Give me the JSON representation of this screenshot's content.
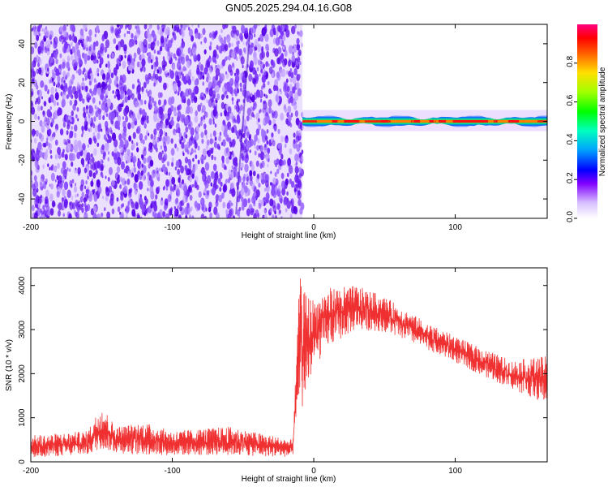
{
  "figure": {
    "title": "GN05.2025.294.04.16.G08"
  },
  "chart_data": [
    {
      "type": "heatmap",
      "xlabel": "Height of straight line (km)",
      "ylabel": "Frequency (Hz)",
      "xlim": [
        -200,
        165
      ],
      "ylim": [
        -50,
        50
      ],
      "x_ticks": [
        -200,
        -100,
        0,
        100
      ],
      "y_ticks": [
        -40,
        -20,
        0,
        20,
        40
      ],
      "noise_region_x": [
        -200,
        -8
      ],
      "signal_region_x": [
        -8,
        165
      ],
      "signal_center_hz": 0,
      "colorbar": {
        "label": "Normalized spectral amplitude",
        "range": [
          0.0,
          1.0
        ],
        "ticks": [
          0.0,
          0.2,
          0.4,
          0.6,
          0.8
        ],
        "tick_labels": [
          "0.0",
          "0.2",
          "0.4",
          "0.6",
          "0.8"
        ],
        "colors": [
          "#f0e0ff",
          "#8040ff",
          "#0000ff",
          "#00c0ff",
          "#00ff60",
          "#80ff00",
          "#ffff00",
          "#ff8000",
          "#ff0000",
          "#ff0080"
        ]
      }
    },
    {
      "type": "line",
      "xlabel": "Height of straight line (km)",
      "ylabel": "SNR (10 * v/v)",
      "xlim": [
        -200,
        165
      ],
      "ylim": [
        0,
        4400
      ],
      "x_ticks": [
        -200,
        -100,
        0,
        100
      ],
      "y_ticks": [
        0,
        1000,
        2000,
        3000,
        4000
      ],
      "series_color": "#f03030",
      "envelope": {
        "x": [
          -200,
          -160,
          -150,
          -140,
          -120,
          -100,
          -60,
          -15,
          -12,
          -10,
          -8,
          0,
          10,
          30,
          50,
          80,
          110,
          140,
          165
        ],
        "y_low": [
          100,
          150,
          300,
          200,
          150,
          150,
          150,
          100,
          800,
          1500,
          1200,
          2100,
          2600,
          3000,
          2950,
          2550,
          2100,
          1650,
          1300
        ],
        "y_high": [
          600,
          700,
          1300,
          800,
          900,
          700,
          800,
          500,
          2500,
          4300,
          3900,
          3700,
          3950,
          4000,
          3750,
          3150,
          2700,
          2300,
          2400
        ]
      }
    }
  ]
}
